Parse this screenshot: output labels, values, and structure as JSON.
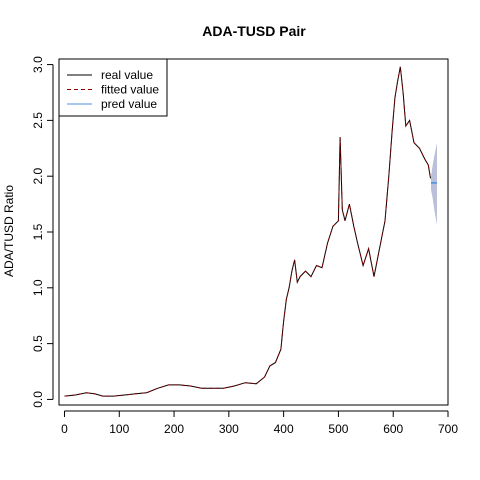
{
  "chart_data": {
    "type": "line",
    "title": "ADA-TUSD Pair",
    "xlabel": "",
    "ylabel": "ADA/TUSD  Ratio",
    "xlim": [
      -10,
      700
    ],
    "ylim": [
      -0.05,
      3.05
    ],
    "x_ticks": [
      0,
      100,
      200,
      300,
      400,
      500,
      600,
      700
    ],
    "y_ticks": [
      0.0,
      0.5,
      1.0,
      1.5,
      2.0,
      2.5,
      3.0
    ],
    "x_tick_labels": [
      "0",
      "100",
      "200",
      "300",
      "400",
      "500",
      "600",
      "700"
    ],
    "y_tick_labels": [
      "0.0",
      "0.5",
      "1.0",
      "1.5",
      "2.0",
      "2.5",
      "3.0"
    ],
    "grid": false,
    "legend_position": "top-left",
    "legend": [
      {
        "label": "real value",
        "color": "#000000",
        "style": "solid"
      },
      {
        "label": "fitted value",
        "color": "#8b0000",
        "style": "dashed"
      },
      {
        "label": "pred value",
        "color": "#4a90e2",
        "style": "solid"
      }
    ],
    "series": [
      {
        "name": "real value",
        "color": "#000000",
        "points": [
          [
            0,
            0.03
          ],
          [
            20,
            0.04
          ],
          [
            40,
            0.06
          ],
          [
            55,
            0.05
          ],
          [
            70,
            0.03
          ],
          [
            90,
            0.03
          ],
          [
            110,
            0.04
          ],
          [
            130,
            0.05
          ],
          [
            150,
            0.06
          ],
          [
            170,
            0.1
          ],
          [
            190,
            0.13
          ],
          [
            210,
            0.13
          ],
          [
            230,
            0.12
          ],
          [
            250,
            0.1
          ],
          [
            270,
            0.1
          ],
          [
            290,
            0.1
          ],
          [
            310,
            0.12
          ],
          [
            330,
            0.15
          ],
          [
            350,
            0.14
          ],
          [
            365,
            0.2
          ],
          [
            375,
            0.3
          ],
          [
            385,
            0.33
          ],
          [
            395,
            0.45
          ],
          [
            400,
            0.7
          ],
          [
            405,
            0.9
          ],
          [
            410,
            1.0
          ],
          [
            415,
            1.15
          ],
          [
            420,
            1.25
          ],
          [
            425,
            1.05
          ],
          [
            430,
            1.1
          ],
          [
            440,
            1.15
          ],
          [
            450,
            1.1
          ],
          [
            460,
            1.2
          ],
          [
            470,
            1.18
          ],
          [
            480,
            1.4
          ],
          [
            490,
            1.55
          ],
          [
            500,
            1.6
          ],
          [
            503,
            2.35
          ],
          [
            507,
            1.7
          ],
          [
            512,
            1.6
          ],
          [
            520,
            1.75
          ],
          [
            528,
            1.55
          ],
          [
            535,
            1.4
          ],
          [
            545,
            1.2
          ],
          [
            555,
            1.35
          ],
          [
            565,
            1.1
          ],
          [
            575,
            1.35
          ],
          [
            585,
            1.6
          ],
          [
            592,
            2.0
          ],
          [
            598,
            2.4
          ],
          [
            603,
            2.7
          ],
          [
            608,
            2.85
          ],
          [
            613,
            2.98
          ],
          [
            618,
            2.75
          ],
          [
            623,
            2.45
          ],
          [
            630,
            2.5
          ],
          [
            638,
            2.3
          ],
          [
            648,
            2.25
          ],
          [
            658,
            2.15
          ],
          [
            664,
            2.1
          ],
          [
            668,
            1.98
          ]
        ]
      },
      {
        "name": "fitted value",
        "color": "#8b0000",
        "points": [
          [
            0,
            0.03
          ],
          [
            20,
            0.04
          ],
          [
            40,
            0.06
          ],
          [
            55,
            0.05
          ],
          [
            70,
            0.03
          ],
          [
            90,
            0.03
          ],
          [
            110,
            0.04
          ],
          [
            130,
            0.05
          ],
          [
            150,
            0.06
          ],
          [
            170,
            0.1
          ],
          [
            190,
            0.13
          ],
          [
            210,
            0.13
          ],
          [
            230,
            0.12
          ],
          [
            250,
            0.1
          ],
          [
            270,
            0.1
          ],
          [
            290,
            0.1
          ],
          [
            310,
            0.12
          ],
          [
            330,
            0.15
          ],
          [
            350,
            0.14
          ],
          [
            365,
            0.2
          ],
          [
            375,
            0.3
          ],
          [
            385,
            0.33
          ],
          [
            395,
            0.45
          ],
          [
            400,
            0.7
          ],
          [
            405,
            0.9
          ],
          [
            410,
            1.0
          ],
          [
            415,
            1.15
          ],
          [
            420,
            1.25
          ],
          [
            425,
            1.05
          ],
          [
            430,
            1.1
          ],
          [
            440,
            1.15
          ],
          [
            450,
            1.1
          ],
          [
            460,
            1.2
          ],
          [
            470,
            1.18
          ],
          [
            480,
            1.4
          ],
          [
            490,
            1.55
          ],
          [
            500,
            1.6
          ],
          [
            503,
            2.35
          ],
          [
            507,
            1.7
          ],
          [
            512,
            1.6
          ],
          [
            520,
            1.75
          ],
          [
            528,
            1.55
          ],
          [
            535,
            1.4
          ],
          [
            545,
            1.2
          ],
          [
            555,
            1.35
          ],
          [
            565,
            1.1
          ],
          [
            575,
            1.35
          ],
          [
            585,
            1.6
          ],
          [
            592,
            2.0
          ],
          [
            598,
            2.4
          ],
          [
            603,
            2.7
          ],
          [
            608,
            2.85
          ],
          [
            613,
            2.98
          ],
          [
            618,
            2.75
          ],
          [
            623,
            2.45
          ],
          [
            630,
            2.5
          ],
          [
            638,
            2.3
          ],
          [
            648,
            2.25
          ],
          [
            658,
            2.15
          ],
          [
            664,
            2.1
          ],
          [
            668,
            1.98
          ]
        ]
      },
      {
        "name": "pred value",
        "color": "#4a90e2",
        "points": [
          [
            669,
            1.94
          ],
          [
            680,
            1.94
          ]
        ]
      }
    ],
    "prediction_band": {
      "color": "#b3b8d6",
      "upper": [
        [
          669,
          2.0
        ],
        [
          672,
          2.1
        ],
        [
          675,
          2.18
        ],
        [
          678,
          2.25
        ],
        [
          680,
          2.3
        ]
      ],
      "lower": [
        [
          669,
          1.88
        ],
        [
          672,
          1.8
        ],
        [
          675,
          1.7
        ],
        [
          678,
          1.62
        ],
        [
          680,
          1.56
        ]
      ]
    }
  }
}
